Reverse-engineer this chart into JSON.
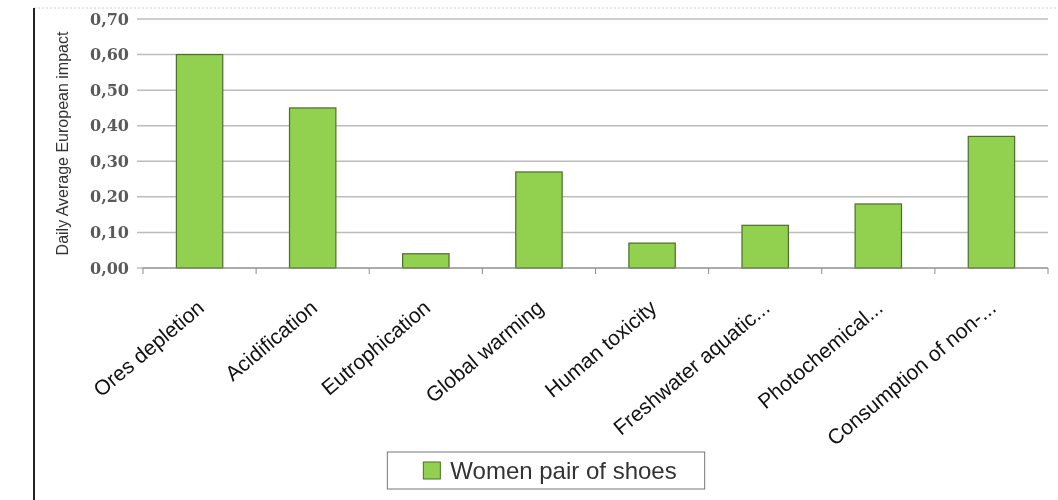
{
  "chart_data": {
    "type": "bar",
    "ylabel": "Daily Average European impact",
    "categories": [
      "Ores depletion",
      "Acidification",
      "Eutrophication",
      "Global warming",
      "Human toxicity",
      "Freshwater aquatic...",
      "Photochemical...",
      "Consumption of non-..."
    ],
    "series": [
      {
        "name": "Women pair of shoes",
        "color": "#92d050",
        "values": [
          0.6,
          0.45,
          0.04,
          0.27,
          0.07,
          0.12,
          0.18,
          0.37
        ]
      }
    ],
    "ylim": [
      0,
      0.7
    ],
    "yticks": [
      {
        "value": 0,
        "label": "0,00"
      },
      {
        "value": 0.1,
        "label": "0,10"
      },
      {
        "value": 0.2,
        "label": "0,20"
      },
      {
        "value": 0.3,
        "label": "0,30"
      },
      {
        "value": 0.4,
        "label": "0,40"
      },
      {
        "value": 0.5,
        "label": "0,50"
      },
      {
        "value": 0.6,
        "label": "0,60"
      },
      {
        "value": 0.7,
        "label": "0,70"
      }
    ],
    "grid": "y",
    "legend": "bottom"
  }
}
